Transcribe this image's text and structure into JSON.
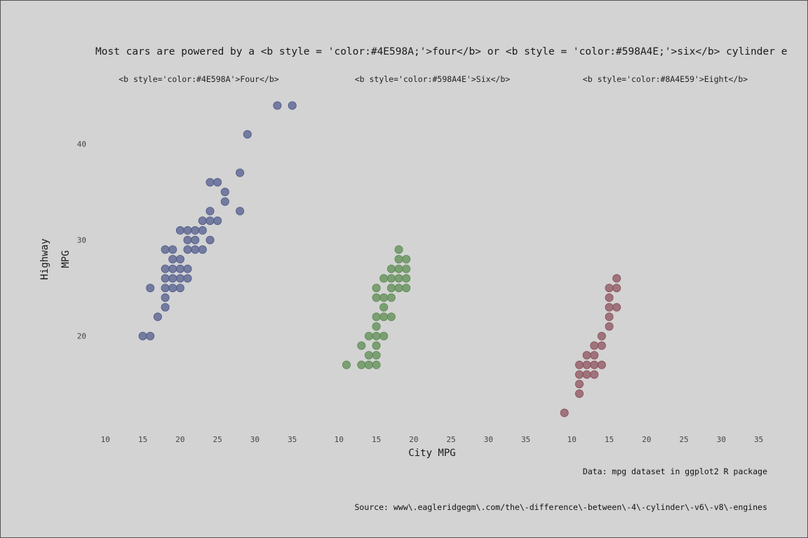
{
  "chart_data": {
    "type": "scatter",
    "title": "Most cars are powered by a <b style = 'color:#4E598A;'>four</b> or <b style = 'color:#598A4E;'>six</b> cylinder e",
    "xlabel": "City MPG",
    "ylabel_lines": [
      "Highway",
      "MPG"
    ],
    "caption_data": "Data: mpg dataset in ggplot2 R package",
    "caption_source": "Source: www\\.eagleridgegm\\.com/the\\-difference\\-between\\-4\\-cylinder\\-v6\\-v8\\-engines",
    "x_ticks": [
      10,
      15,
      20,
      25,
      30,
      35
    ],
    "y_ticks": [
      20,
      30,
      40
    ],
    "xlim": [
      8,
      37
    ],
    "ylim": [
      10.5,
      45.5
    ],
    "grid": false,
    "background": "#d3d3d3",
    "panels": [
      {
        "label": "<b style='color:#4E598A'>Four</b>",
        "color": "#4E598A",
        "points": [
          [
            15,
            20
          ],
          [
            16,
            20
          ],
          [
            16,
            25
          ],
          [
            17,
            22
          ],
          [
            18,
            23
          ],
          [
            18,
            24
          ],
          [
            18,
            25
          ],
          [
            18,
            26
          ],
          [
            18,
            27
          ],
          [
            18,
            29
          ],
          [
            19,
            25
          ],
          [
            19,
            26
          ],
          [
            19,
            27
          ],
          [
            19,
            28
          ],
          [
            19,
            29
          ],
          [
            20,
            25
          ],
          [
            20,
            26
          ],
          [
            20,
            27
          ],
          [
            20,
            28
          ],
          [
            20,
            31
          ],
          [
            21,
            26
          ],
          [
            21,
            27
          ],
          [
            21,
            29
          ],
          [
            21,
            30
          ],
          [
            21,
            31
          ],
          [
            22,
            29
          ],
          [
            22,
            30
          ],
          [
            22,
            31
          ],
          [
            23,
            29
          ],
          [
            23,
            31
          ],
          [
            23,
            32
          ],
          [
            24,
            30
          ],
          [
            24,
            32
          ],
          [
            24,
            33
          ],
          [
            24,
            36
          ],
          [
            25,
            32
          ],
          [
            25,
            36
          ],
          [
            26,
            34
          ],
          [
            26,
            35
          ],
          [
            28,
            33
          ],
          [
            28,
            37
          ],
          [
            29,
            41
          ],
          [
            33,
            44
          ],
          [
            35,
            44
          ]
        ]
      },
      {
        "label": "<b style='color:#598A4E'>Six</b>",
        "color": "#598A4E",
        "points": [
          [
            11,
            17
          ],
          [
            13,
            17
          ],
          [
            13,
            19
          ],
          [
            14,
            17
          ],
          [
            14,
            18
          ],
          [
            14,
            20
          ],
          [
            15,
            17
          ],
          [
            15,
            18
          ],
          [
            15,
            19
          ],
          [
            15,
            20
          ],
          [
            15,
            21
          ],
          [
            15,
            22
          ],
          [
            15,
            24
          ],
          [
            15,
            25
          ],
          [
            16,
            20
          ],
          [
            16,
            22
          ],
          [
            16,
            23
          ],
          [
            16,
            24
          ],
          [
            16,
            26
          ],
          [
            17,
            22
          ],
          [
            17,
            24
          ],
          [
            17,
            25
          ],
          [
            17,
            26
          ],
          [
            17,
            27
          ],
          [
            18,
            25
          ],
          [
            18,
            26
          ],
          [
            18,
            27
          ],
          [
            18,
            28
          ],
          [
            18,
            29
          ],
          [
            19,
            25
          ],
          [
            19,
            26
          ],
          [
            19,
            27
          ],
          [
            19,
            28
          ]
        ]
      },
      {
        "label": "<b style='color:#8A4E59'>Eight</b>",
        "color": "#8A4E59",
        "points": [
          [
            9,
            12
          ],
          [
            11,
            14
          ],
          [
            11,
            15
          ],
          [
            11,
            16
          ],
          [
            11,
            17
          ],
          [
            12,
            16
          ],
          [
            12,
            17
          ],
          [
            12,
            18
          ],
          [
            13,
            16
          ],
          [
            13,
            17
          ],
          [
            13,
            18
          ],
          [
            13,
            19
          ],
          [
            14,
            17
          ],
          [
            14,
            19
          ],
          [
            14,
            20
          ],
          [
            15,
            21
          ],
          [
            15,
            22
          ],
          [
            15,
            23
          ],
          [
            15,
            24
          ],
          [
            15,
            25
          ],
          [
            16,
            23
          ],
          [
            16,
            25
          ],
          [
            16,
            26
          ]
        ]
      }
    ]
  }
}
